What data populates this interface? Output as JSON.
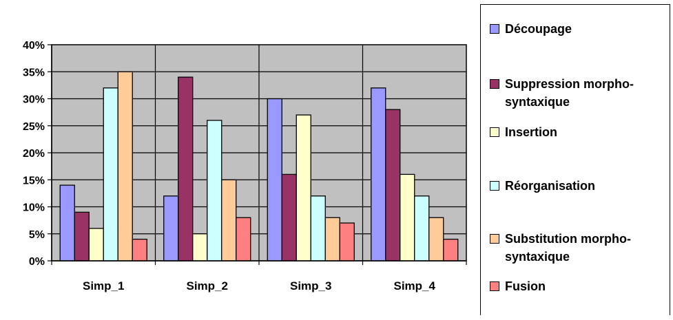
{
  "chart_data": {
    "type": "bar",
    "categories": [
      "Simp_1",
      "Simp_2",
      "Simp_3",
      "Simp_4"
    ],
    "series": [
      {
        "name": "Découpage",
        "color": "#9999ff",
        "values": [
          14,
          12,
          30,
          32
        ]
      },
      {
        "name": "Suppression morpho-syntaxique",
        "color": "#993366",
        "values": [
          9,
          34,
          16,
          28
        ]
      },
      {
        "name": "Insertion",
        "color": "#ffffcc",
        "values": [
          6,
          5,
          27,
          16
        ]
      },
      {
        "name": "Réorganisation",
        "color": "#ccffff",
        "values": [
          32,
          26,
          12,
          12
        ]
      },
      {
        "name": "Substitution morpho-syntaxique",
        "color": "#ffcc99",
        "values": [
          35,
          15,
          8,
          8
        ]
      },
      {
        "name": "Fusion",
        "color": "#ff8080",
        "values": [
          4,
          8,
          7,
          4
        ]
      }
    ],
    "y_ticks": [
      "0%",
      "5%",
      "10%",
      "15%",
      "20%",
      "25%",
      "30%",
      "35%",
      "40%"
    ],
    "ylim": [
      0,
      40
    ],
    "y_unit": "%",
    "grid": true,
    "plot_background": "#c0c0c0",
    "legend_position": "right"
  },
  "legend": {
    "items": [
      {
        "line1": "Découpage",
        "line2": ""
      },
      {
        "line1": "Suppression morpho-",
        "line2": "syntaxique"
      },
      {
        "line1": "Insertion",
        "line2": ""
      },
      {
        "line1": "Réorganisation",
        "line2": ""
      },
      {
        "line1": "Substitution morpho-",
        "line2": "syntaxique"
      },
      {
        "line1": "Fusion",
        "line2": ""
      }
    ]
  }
}
